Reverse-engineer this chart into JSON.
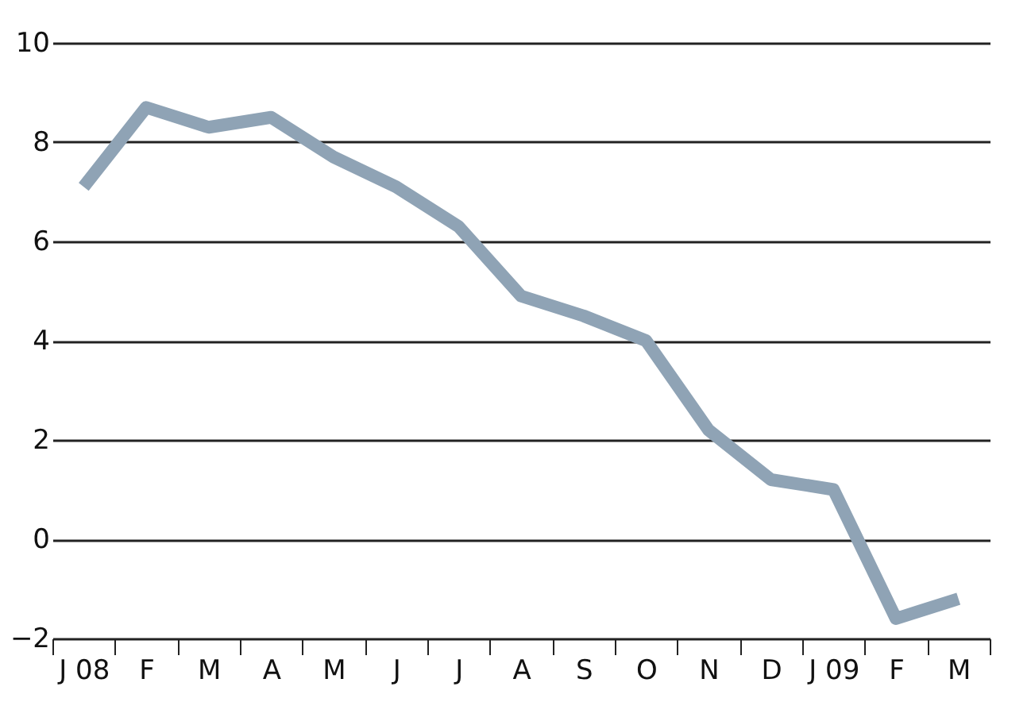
{
  "chart_data": {
    "type": "line",
    "categories": [
      "J 08",
      "F",
      "M",
      "A",
      "M",
      "J",
      "J",
      "A",
      "S",
      "O",
      "N",
      "D",
      "J 09",
      "F",
      "M"
    ],
    "series": [
      {
        "color": "#8fa3b5",
        "values": [
          7.1,
          8.7,
          8.3,
          8.5,
          7.7,
          7.1,
          6.3,
          4.9,
          4.5,
          4.0,
          2.2,
          1.2,
          1.0,
          -1.6,
          -1.2
        ]
      }
    ],
    "ylim": [
      -2,
      10
    ],
    "yticks": [
      -2,
      0,
      2,
      4,
      6,
      8,
      10
    ],
    "grid": "y",
    "marker": "none",
    "line_style": "solid"
  }
}
